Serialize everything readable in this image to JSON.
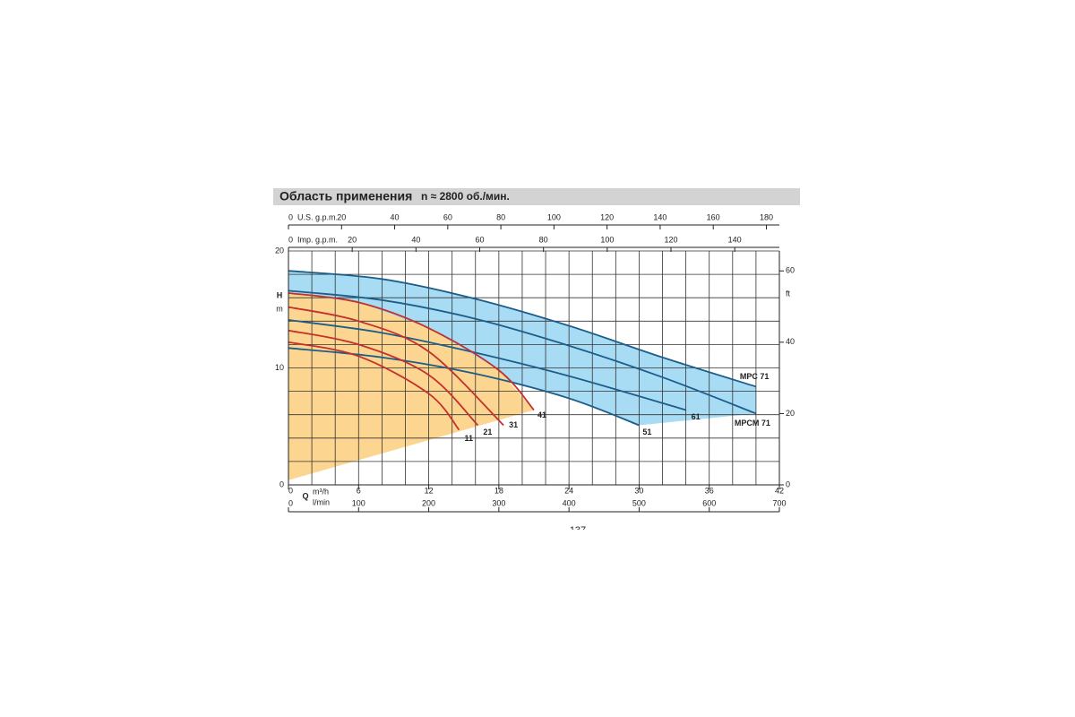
{
  "chart_data": {
    "type": "line",
    "title": "Область применения",
    "subtitle": "n ≈ 2800 об./мин.",
    "ylabel": "H",
    "yunit": "m",
    "y2unit": "ft",
    "xlabel": "Q",
    "xunit": "m³/h",
    "x2unit": "l/min",
    "x3unit": "U.S. g.p.m.",
    "x4unit": "Imp. g.p.m.",
    "xlim": [
      0,
      42
    ],
    "xticks": [
      0,
      6,
      12,
      18,
      24,
      30,
      36,
      42
    ],
    "xgrid": [
      0,
      2,
      4,
      6,
      8,
      10,
      12,
      14,
      16,
      18,
      20,
      22,
      24,
      26,
      28,
      30,
      32,
      34,
      36,
      38,
      40,
      42
    ],
    "ylim": [
      0,
      20
    ],
    "yticks": [
      0,
      10,
      20
    ],
    "ygrid": [
      0,
      2,
      4,
      6,
      8,
      10,
      12,
      14,
      16,
      18,
      20
    ],
    "y2lim": [
      0,
      65.6
    ],
    "y2ticks": [
      0,
      20,
      40,
      60
    ],
    "x2lim": [
      0,
      700
    ],
    "x2ticks": [
      0,
      100,
      200,
      300,
      400,
      500,
      600,
      700
    ],
    "x3lim": [
      0,
      184.9
    ],
    "x3ticks": [
      0,
      20,
      40,
      60,
      80,
      100,
      120,
      140,
      160,
      180
    ],
    "x4lim": [
      0,
      154
    ],
    "x4ticks": [
      0,
      20,
      40,
      60,
      80,
      100,
      120,
      140
    ],
    "areas": [
      {
        "color": "#a8dcf4",
        "x": [
          0,
          8,
          16,
          24,
          32,
          40,
          40,
          30,
          24,
          16,
          8,
          0
        ],
        "y": [
          18.3,
          17.6,
          15.9,
          13.6,
          10.9,
          8.4,
          6.1,
          5.1,
          7.4,
          9.5,
          10.9,
          11.7
        ]
      },
      {
        "color": "#fcd690",
        "x": [
          0,
          21,
          21,
          18,
          12,
          6,
          0
        ],
        "y": [
          0.4,
          6.4,
          6.4,
          9.8,
          13.4,
          15.6,
          16.4
        ]
      }
    ],
    "series": [
      {
        "name": "MPC 71",
        "color": "#1c5d8a",
        "x": [
          0,
          8,
          16,
          24,
          32,
          40
        ],
        "values": [
          18.3,
          17.6,
          15.9,
          13.6,
          10.9,
          8.4
        ]
      },
      {
        "name": "MPCM 71",
        "color": "#1c5d8a",
        "x": [
          0,
          8,
          16,
          24,
          32,
          40
        ],
        "values": [
          16.6,
          15.8,
          14.2,
          11.9,
          9.2,
          6.1
        ]
      },
      {
        "name": "61",
        "color": "#1c5d8a",
        "x": [
          0,
          8,
          16,
          24,
          34
        ],
        "values": [
          14.1,
          13.0,
          11.3,
          9.3,
          6.4
        ]
      },
      {
        "name": "51",
        "color": "#1c5d8a",
        "x": [
          0,
          8,
          16,
          24,
          30
        ],
        "values": [
          11.7,
          10.9,
          9.5,
          7.4,
          5.1
        ]
      },
      {
        "name": "41",
        "color": "#c4302b",
        "x": [
          0,
          6,
          12,
          18,
          21
        ],
        "values": [
          16.4,
          15.6,
          13.4,
          9.8,
          6.4
        ]
      },
      {
        "name": "31",
        "color": "#c4302b",
        "x": [
          0,
          6,
          12,
          18.4
        ],
        "values": [
          15.2,
          14.0,
          11.4,
          5.1
        ]
      },
      {
        "name": "21",
        "color": "#c4302b",
        "x": [
          0,
          6,
          12,
          16.2
        ],
        "values": [
          13.2,
          12.0,
          9.4,
          5.1
        ]
      },
      {
        "name": "11",
        "color": "#c4302b",
        "x": [
          0,
          6,
          12,
          14.6
        ],
        "values": [
          12.2,
          11.0,
          7.8,
          4.7
        ]
      }
    ]
  },
  "page_number": "137"
}
